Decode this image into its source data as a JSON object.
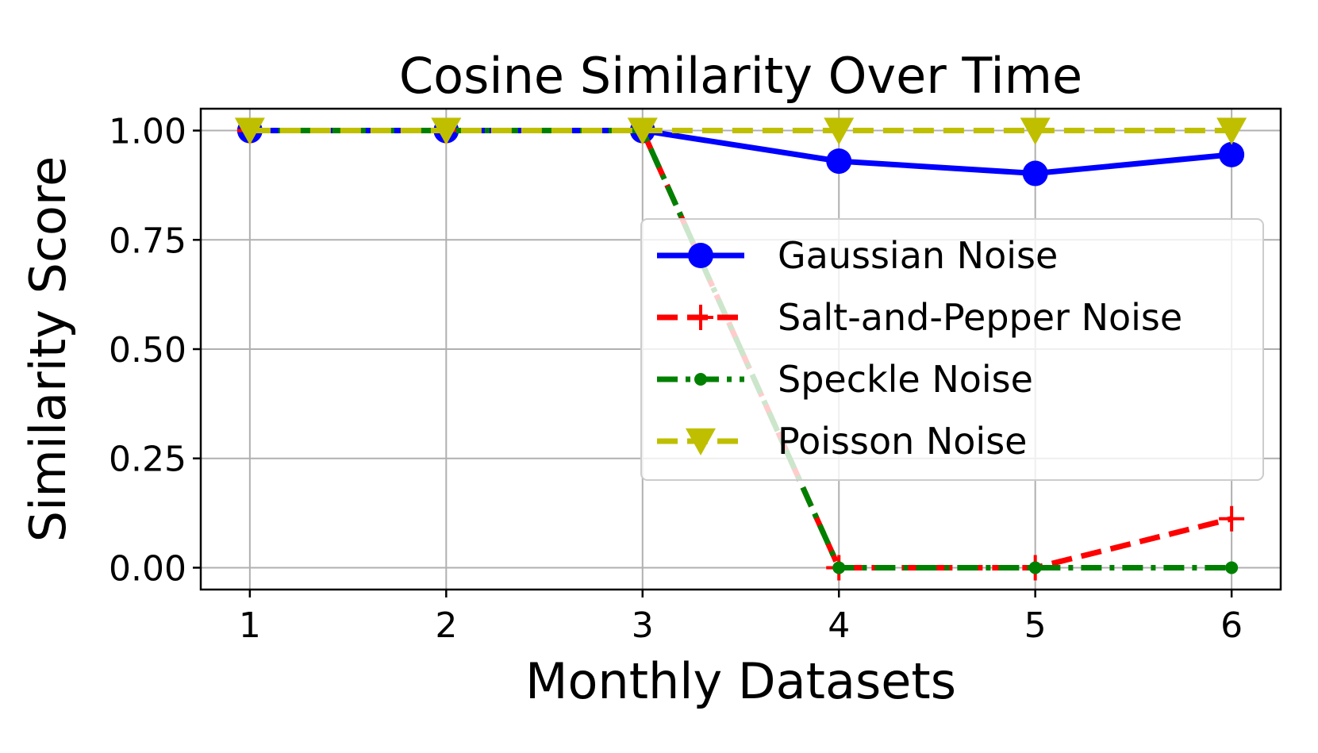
{
  "chart_data": {
    "type": "line",
    "title": "Cosine Similarity Over Time",
    "xlabel": "Monthly Datasets",
    "ylabel": "Similarity Score",
    "x": [
      1,
      2,
      3,
      4,
      5,
      6
    ],
    "xlim": [
      0.75,
      6.25
    ],
    "ylim": [
      -0.05,
      1.05
    ],
    "xticks": [
      "1",
      "2",
      "3",
      "4",
      "5",
      "6"
    ],
    "yticks": [
      0.0,
      0.25,
      0.5,
      0.75,
      1.0
    ],
    "ytick_labels": [
      "0.00",
      "0.25",
      "0.50",
      "0.75",
      "1.00"
    ],
    "grid": true,
    "legend_position": "center-right",
    "series": [
      {
        "name": "Gaussian Noise",
        "values": [
          1.0,
          1.0,
          1.0,
          0.93,
          0.902,
          0.945
        ],
        "color": "#0000ff",
        "linestyle": "solid",
        "marker": "circle"
      },
      {
        "name": "Salt-and-Pepper Noise",
        "values": [
          1.0,
          1.0,
          1.0,
          0.0,
          0.0,
          0.112
        ],
        "color": "#ff0000",
        "linestyle": "dashed",
        "marker": "plus"
      },
      {
        "name": "Speckle Noise",
        "values": [
          1.0,
          1.0,
          1.0,
          0.0,
          0.0,
          0.0
        ],
        "color": "#008000",
        "linestyle": "dashdot",
        "marker": "dot"
      },
      {
        "name": "Poisson Noise",
        "values": [
          1.0,
          1.0,
          1.0,
          1.0,
          1.0,
          1.0
        ],
        "color": "#bfbf00",
        "linestyle": "dashed",
        "marker": "triangle-down"
      }
    ]
  }
}
